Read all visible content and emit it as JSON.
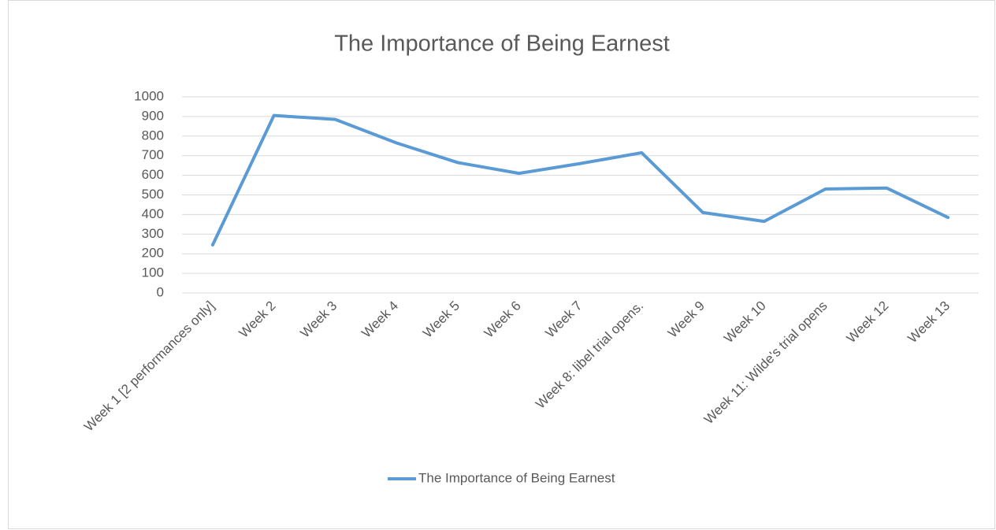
{
  "chart_data": {
    "type": "line",
    "title": "The Importance of Being Earnest",
    "categories": [
      "Week 1 [2 performances only]",
      "Week 2",
      "Week 3",
      "Week 4",
      "Week 5",
      "Week 6",
      "Week 7",
      "Week 8: libel trial opens.",
      "Week 9",
      "Week 10",
      "Week 11: Wilde's trial opens",
      "Week 12",
      "Week 13"
    ],
    "series": [
      {
        "name": "The Importance of Being Earnest",
        "color": "#5b9bd5",
        "values": [
          245,
          905,
          885,
          765,
          665,
          610,
          660,
          715,
          410,
          365,
          530,
          535,
          385
        ]
      }
    ],
    "ylim": [
      0,
      1000
    ],
    "yticks": [
      0,
      100,
      200,
      300,
      400,
      500,
      600,
      700,
      800,
      900,
      1000
    ],
    "grid": true,
    "legend": "bottom"
  }
}
